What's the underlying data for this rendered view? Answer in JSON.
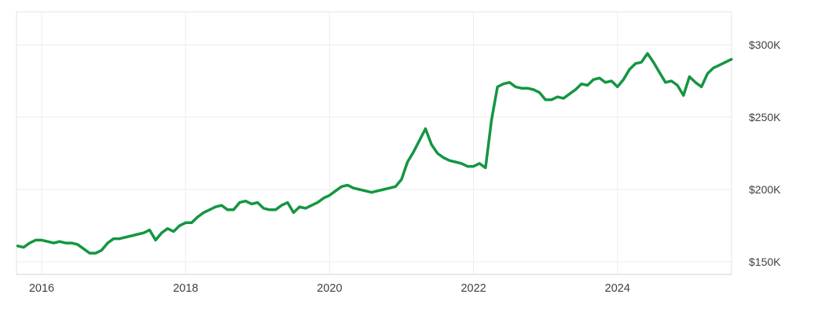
{
  "chart_data": {
    "type": "line",
    "title": "",
    "legend_position": "none",
    "grid": true,
    "unit": "USD thousands (K)",
    "line_color": "#149642",
    "x_range_years": [
      2015.667,
      2025.667
    ],
    "y_range_k": [
      141,
      323
    ],
    "y_axis": {
      "side": "right",
      "ticks": [
        {
          "label": "$300K",
          "value": 300
        },
        {
          "label": "$250K",
          "value": 250
        },
        {
          "label": "$200K",
          "value": 200
        },
        {
          "label": "$150K",
          "value": 150
        }
      ]
    },
    "x_axis": {
      "side": "bottom",
      "ticks": [
        {
          "label": "2016",
          "value": 2016
        },
        {
          "label": "2018",
          "value": 2018
        },
        {
          "label": "2020",
          "value": 2020
        },
        {
          "label": "2022",
          "value": 2022
        },
        {
          "label": "2024",
          "value": 2024
        }
      ]
    },
    "x": [
      "2015-09",
      "2015-10",
      "2015-11",
      "2015-12",
      "2016-01",
      "2016-02",
      "2016-03",
      "2016-04",
      "2016-05",
      "2016-06",
      "2016-07",
      "2016-08",
      "2016-09",
      "2016-10",
      "2016-11",
      "2016-12",
      "2017-01",
      "2017-02",
      "2017-03",
      "2017-04",
      "2017-05",
      "2017-06",
      "2017-07",
      "2017-08",
      "2017-09",
      "2017-10",
      "2017-11",
      "2017-12",
      "2018-01",
      "2018-02",
      "2018-03",
      "2018-04",
      "2018-05",
      "2018-06",
      "2018-07",
      "2018-08",
      "2018-09",
      "2018-10",
      "2018-11",
      "2018-12",
      "2019-01",
      "2019-02",
      "2019-03",
      "2019-04",
      "2019-05",
      "2019-06",
      "2019-07",
      "2019-08",
      "2019-09",
      "2019-10",
      "2019-11",
      "2019-12",
      "2020-01",
      "2020-02",
      "2020-03",
      "2020-04",
      "2020-05",
      "2020-06",
      "2020-07",
      "2020-08",
      "2020-09",
      "2020-10",
      "2020-11",
      "2020-12",
      "2021-01",
      "2021-02",
      "2021-03",
      "2021-04",
      "2021-05",
      "2021-06",
      "2021-07",
      "2021-08",
      "2021-09",
      "2021-10",
      "2021-11",
      "2021-12",
      "2022-01",
      "2022-02",
      "2022-03",
      "2022-04",
      "2022-05",
      "2022-06",
      "2022-07",
      "2022-08",
      "2022-09",
      "2022-10",
      "2022-11",
      "2022-12",
      "2023-01",
      "2023-02",
      "2023-03",
      "2023-04",
      "2023-05",
      "2023-06",
      "2023-07",
      "2023-08",
      "2023-09",
      "2023-10",
      "2023-11",
      "2023-12",
      "2024-01",
      "2024-02",
      "2024-03",
      "2024-04",
      "2024-05",
      "2024-06",
      "2024-07",
      "2024-08",
      "2024-09",
      "2024-10",
      "2024-11",
      "2024-12",
      "2025-01",
      "2025-02",
      "2025-03",
      "2025-04",
      "2025-05",
      "2025-06",
      "2025-07",
      "2025-08"
    ],
    "values": [
      161,
      160,
      163,
      165,
      165,
      164,
      163,
      164,
      163,
      163,
      162,
      159,
      156,
      156,
      158,
      163,
      166,
      166,
      167,
      168,
      169,
      170,
      172,
      165,
      170,
      173,
      171,
      175,
      177,
      177,
      181,
      184,
      186,
      188,
      189,
      186,
      186,
      191,
      192,
      190,
      191,
      187,
      186,
      186,
      189,
      191,
      184,
      188,
      187,
      189,
      191,
      194,
      196,
      199,
      202,
      203,
      201,
      200,
      199,
      198,
      199,
      200,
      201,
      202,
      207,
      219,
      226,
      234,
      242,
      231,
      225,
      222,
      220,
      219,
      218,
      216,
      216,
      218,
      215,
      248,
      271,
      273,
      274,
      271,
      270,
      270,
      269,
      267,
      262,
      262,
      264,
      263,
      266,
      269,
      273,
      272,
      276,
      277,
      274,
      275,
      271,
      276,
      283,
      287,
      288,
      294,
      288,
      281,
      274,
      275,
      272,
      265,
      278,
      274,
      271,
      280,
      284,
      286,
      288,
      290
    ]
  },
  "colors": {
    "line": "#149642",
    "grid": "#ececec",
    "border": "#e3e3e3",
    "axis_bottom": "#d0d0d0",
    "tick_label": "#3c4146",
    "background": "#ffffff"
  }
}
